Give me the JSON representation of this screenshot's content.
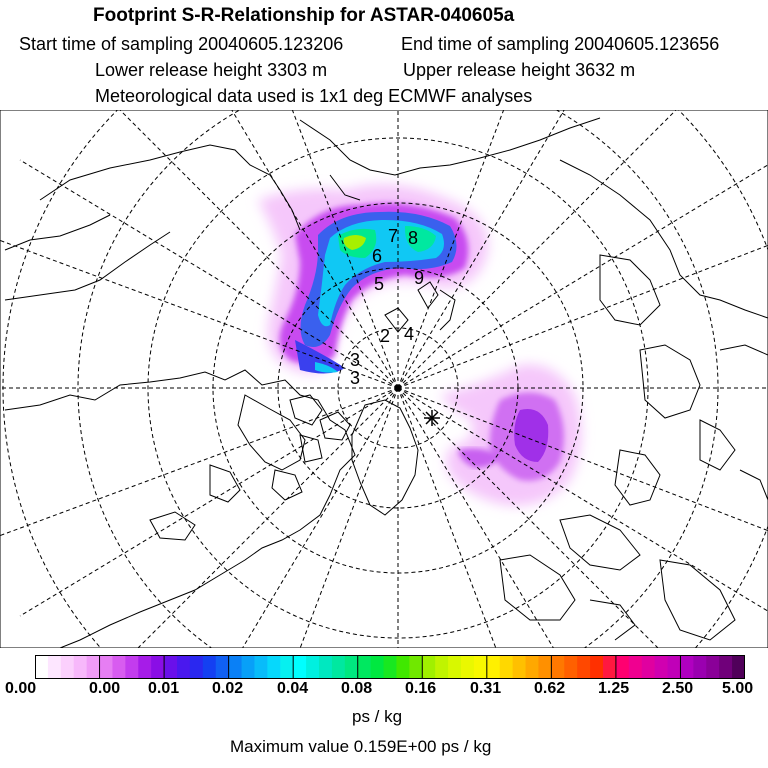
{
  "header": {
    "title": "Footprint S-R-Relationship for ASTAR-040605a",
    "start_time": "Start time of sampling 20040605.123206",
    "end_time": "End time of sampling 20040605.123656",
    "lower_height": "Lower release height 3303 m",
    "upper_height": "Upper release height 3632 m",
    "met_data": "Meteorological data used is 1x1 deg ECMWF analyses"
  },
  "map": {
    "projection": "polar-stereographic-north",
    "contour_labels": [
      "3",
      "5",
      "6",
      "7",
      "8",
      "9",
      "2",
      "4",
      "3"
    ]
  },
  "colorbar": {
    "ticks": [
      "0.00",
      "0.00",
      "0.01",
      "0.02",
      "0.04",
      "0.08",
      "0.16",
      "0.31",
      "0.62",
      "1.25",
      "2.50",
      "5.00"
    ],
    "colors": [
      "#ffffff",
      "#fde6ff",
      "#fbd0fd",
      "#f7b8fb",
      "#f09cf7",
      "#e67ef3",
      "#d85cf0",
      "#c33cee",
      "#a61ce8",
      "#8a0ee6",
      "#6a10ea",
      "#4a18ee",
      "#2a28f0",
      "#1440f2",
      "#1060f4",
      "#0a80f6",
      "#08a0f8",
      "#08bcfa",
      "#06d8fc",
      "#06f0f0",
      "#00ffff",
      "#00f0e0",
      "#00e8c0",
      "#00e8a0",
      "#00e880",
      "#00e860",
      "#00e840",
      "#18e820",
      "#40e800",
      "#70e800",
      "#a0f000",
      "#c0f400",
      "#d8f800",
      "#eaf800",
      "#f8f800",
      "#fff000",
      "#ffd800",
      "#ffc000",
      "#ffa800",
      "#ff9000",
      "#ff7800",
      "#ff6000",
      "#ff4800",
      "#ff3000",
      "#ff1840",
      "#ff0070",
      "#f00090",
      "#e000a0",
      "#d000b0",
      "#c000b8",
      "#b000c0",
      "#9a00b0",
      "#8a0098",
      "#70007a",
      "#50005a"
    ],
    "unit": "ps / kg",
    "max_value": "Maximum value  0.159E+00 ps / kg"
  }
}
